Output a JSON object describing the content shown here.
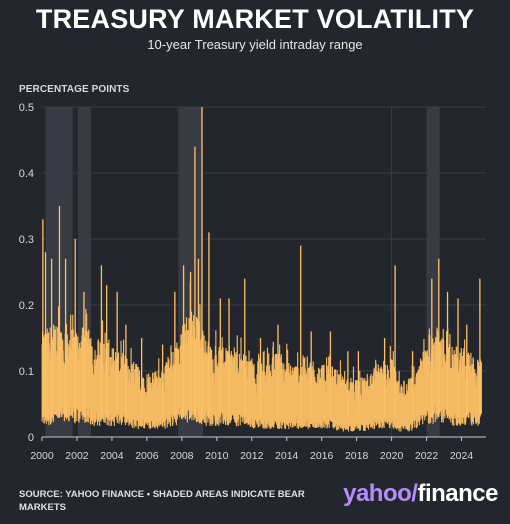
{
  "header": {
    "title": "TREASURY MARKET VOLATILITY",
    "subtitle": "10-year Treasury yield intraday range"
  },
  "footer": {
    "source": "SOURCE: YAHOO FINANCE • SHADED AREAS INDICATE BEAR MARKETS",
    "logo_yahoo": "yahoo",
    "logo_finance": "finance"
  },
  "colors": {
    "background": "#23262c",
    "series": "#ffc266",
    "shade": "#3c4048",
    "grid": "#3a3e45",
    "baseline": "#c8c8c8",
    "tick_text": "#d8d8d8"
  },
  "chart_data": {
    "type": "bar",
    "ylabel": "PERCENTAGE POINTS",
    "xlabel": "",
    "ylim": [
      0,
      0.5
    ],
    "yticks": [
      0,
      0.1,
      0.2,
      0.3,
      0.4,
      0.5
    ],
    "ytick_labels": [
      "0",
      "0.1",
      "0.2",
      "0.3",
      "0.4",
      "0.5"
    ],
    "xlim": [
      2000,
      2025.4
    ],
    "xticks": [
      2000,
      2002,
      2004,
      2006,
      2008,
      2010,
      2012,
      2014,
      2016,
      2018,
      2020,
      2022,
      2024
    ],
    "xtick_labels": [
      "2000",
      "2002",
      "2004",
      "2006",
      "2008",
      "2010",
      "2012",
      "2014",
      "2016",
      "2018",
      "2020",
      "2022",
      "2024"
    ],
    "vertical_gridlines": [
      2008,
      2020
    ],
    "grid": true,
    "shaded_periods": [
      [
        2000.2,
        2001.75
      ],
      [
        2002.05,
        2002.8
      ],
      [
        2007.8,
        2009.2
      ],
      [
        2022.0,
        2022.75
      ]
    ],
    "envelope": {
      "x": [
        2000,
        2000.5,
        2001,
        2001.5,
        2002,
        2002.5,
        2003,
        2003.5,
        2004,
        2004.5,
        2005,
        2005.5,
        2006,
        2006.5,
        2007,
        2007.5,
        2008,
        2008.5,
        2009,
        2009.5,
        2010,
        2010.5,
        2011,
        2011.5,
        2012,
        2012.5,
        2013,
        2013.5,
        2014,
        2014.5,
        2015,
        2015.5,
        2016,
        2016.5,
        2017,
        2017.5,
        2018,
        2018.5,
        2019,
        2019.5,
        2020,
        2020.5,
        2021,
        2021.5,
        2022,
        2022.5,
        2023,
        2023.5,
        2024,
        2024.5,
        2025
      ],
      "typical_high": [
        0.16,
        0.17,
        0.18,
        0.17,
        0.16,
        0.17,
        0.15,
        0.15,
        0.14,
        0.13,
        0.12,
        0.11,
        0.1,
        0.1,
        0.11,
        0.13,
        0.17,
        0.2,
        0.18,
        0.14,
        0.14,
        0.13,
        0.14,
        0.13,
        0.12,
        0.11,
        0.12,
        0.13,
        0.12,
        0.11,
        0.12,
        0.12,
        0.11,
        0.11,
        0.1,
        0.09,
        0.09,
        0.09,
        0.1,
        0.11,
        0.12,
        0.08,
        0.09,
        0.1,
        0.15,
        0.17,
        0.15,
        0.14,
        0.13,
        0.13,
        0.12
      ],
      "typical_low": [
        0.04,
        0.04,
        0.05,
        0.05,
        0.05,
        0.05,
        0.04,
        0.04,
        0.04,
        0.04,
        0.03,
        0.03,
        0.03,
        0.03,
        0.03,
        0.04,
        0.05,
        0.05,
        0.05,
        0.04,
        0.04,
        0.04,
        0.04,
        0.04,
        0.03,
        0.03,
        0.03,
        0.03,
        0.03,
        0.03,
        0.03,
        0.03,
        0.03,
        0.03,
        0.02,
        0.02,
        0.02,
        0.02,
        0.03,
        0.03,
        0.03,
        0.02,
        0.02,
        0.03,
        0.05,
        0.05,
        0.05,
        0.04,
        0.04,
        0.04,
        0.04
      ]
    },
    "peaks": [
      {
        "x": 2000.05,
        "y": 0.33
      },
      {
        "x": 2000.2,
        "y": 0.28
      },
      {
        "x": 2000.55,
        "y": 0.27
      },
      {
        "x": 2001.0,
        "y": 0.35
      },
      {
        "x": 2001.35,
        "y": 0.27
      },
      {
        "x": 2001.9,
        "y": 0.3
      },
      {
        "x": 2002.4,
        "y": 0.22
      },
      {
        "x": 2003.4,
        "y": 0.26
      },
      {
        "x": 2003.7,
        "y": 0.23
      },
      {
        "x": 2004.3,
        "y": 0.22
      },
      {
        "x": 2004.8,
        "y": 0.17
      },
      {
        "x": 2005.7,
        "y": 0.15
      },
      {
        "x": 2006.9,
        "y": 0.14
      },
      {
        "x": 2007.6,
        "y": 0.22
      },
      {
        "x": 2008.1,
        "y": 0.26
      },
      {
        "x": 2008.5,
        "y": 0.25
      },
      {
        "x": 2008.75,
        "y": 0.44
      },
      {
        "x": 2008.95,
        "y": 0.27
      },
      {
        "x": 2009.15,
        "y": 0.5
      },
      {
        "x": 2009.55,
        "y": 0.31
      },
      {
        "x": 2010.2,
        "y": 0.21
      },
      {
        "x": 2010.7,
        "y": 0.21
      },
      {
        "x": 2011.6,
        "y": 0.24
      },
      {
        "x": 2012.5,
        "y": 0.15
      },
      {
        "x": 2013.5,
        "y": 0.17
      },
      {
        "x": 2014.8,
        "y": 0.29
      },
      {
        "x": 2015.4,
        "y": 0.16
      },
      {
        "x": 2016.5,
        "y": 0.16
      },
      {
        "x": 2017.5,
        "y": 0.13
      },
      {
        "x": 2018.1,
        "y": 0.13
      },
      {
        "x": 2019.6,
        "y": 0.15
      },
      {
        "x": 2020.2,
        "y": 0.26
      },
      {
        "x": 2021.2,
        "y": 0.13
      },
      {
        "x": 2022.3,
        "y": 0.24
      },
      {
        "x": 2022.7,
        "y": 0.27
      },
      {
        "x": 2023.2,
        "y": 0.22
      },
      {
        "x": 2023.8,
        "y": 0.21
      },
      {
        "x": 2024.3,
        "y": 0.17
      },
      {
        "x": 2025.05,
        "y": 0.24
      }
    ]
  }
}
